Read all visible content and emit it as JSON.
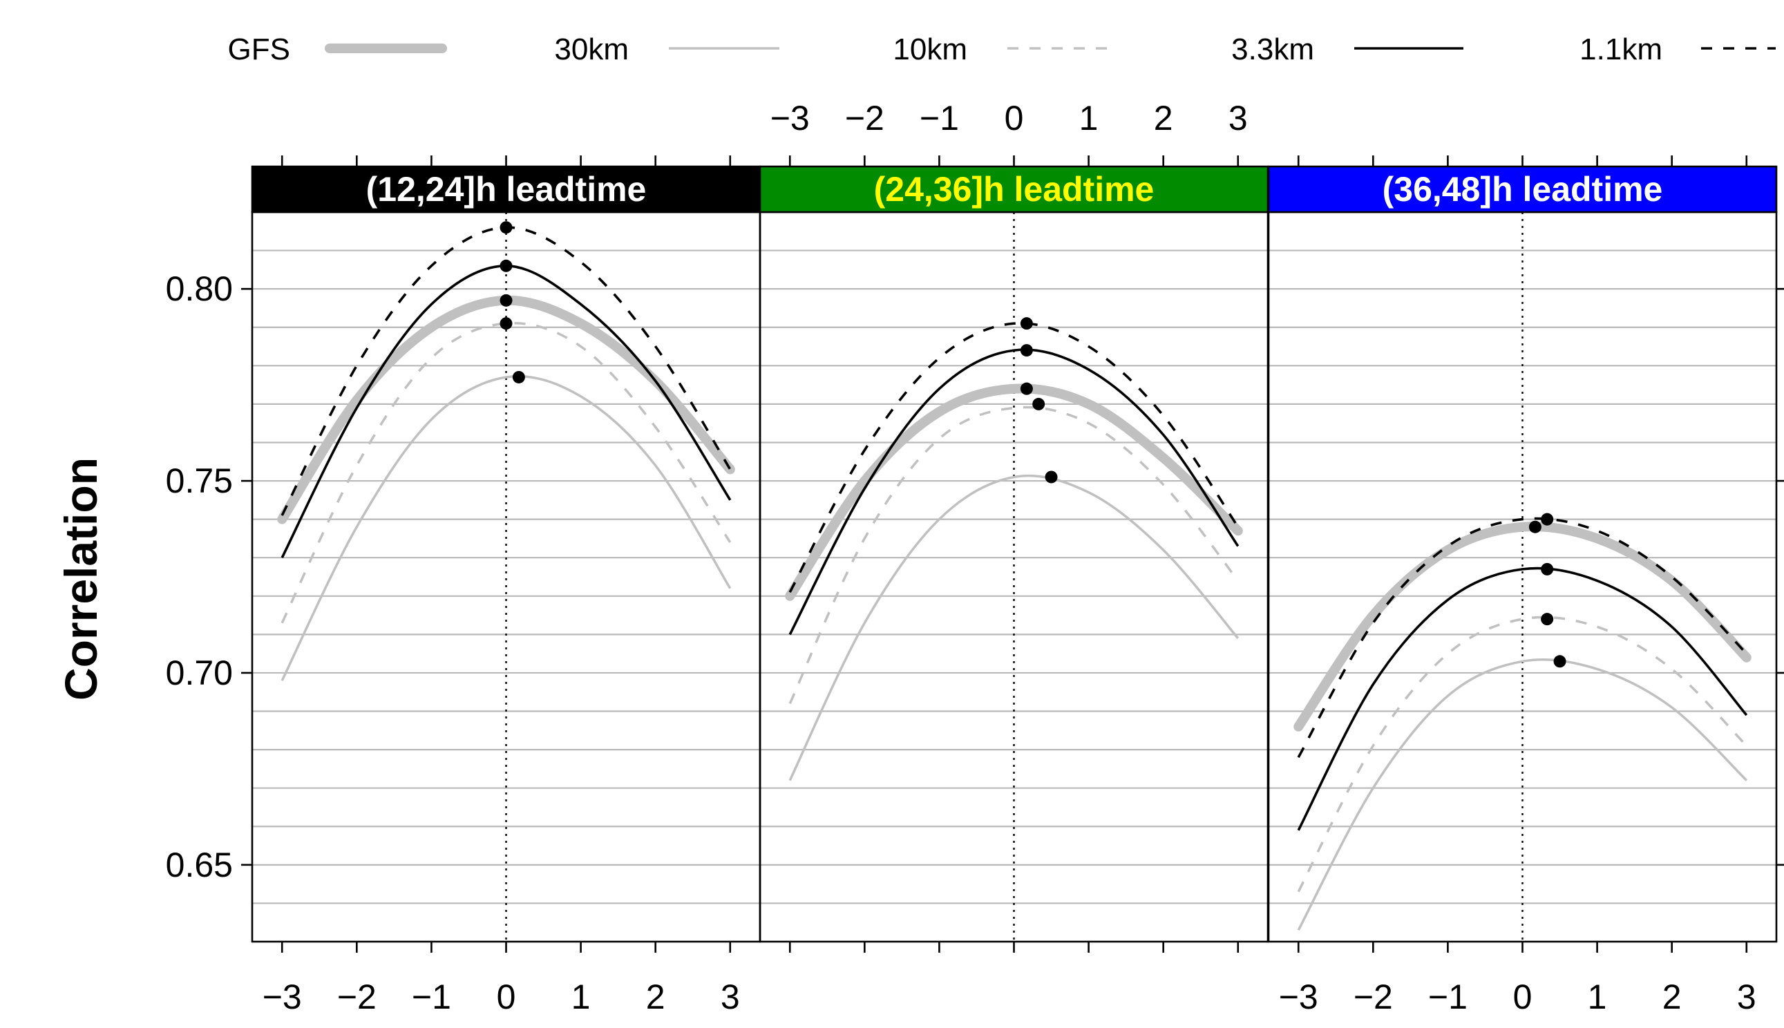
{
  "chart_data": {
    "type": "line",
    "title": "",
    "xlabel": "",
    "ylabel": "Correlation",
    "xlim": [
      -3.4,
      3.4
    ],
    "ylim": [
      0.63,
      0.82
    ],
    "x_ticks": [
      -3,
      -2,
      -1,
      0,
      1,
      2,
      3
    ],
    "x_tick_labels": [
      "−3",
      "−2",
      "−1",
      "0",
      "1",
      "2",
      "3"
    ],
    "y_ticks": [
      0.65,
      0.7,
      0.75,
      0.8
    ],
    "y_tick_labels": [
      "0.65",
      "0.70",
      "0.75",
      "0.80"
    ],
    "grid": true,
    "legend_position": "top",
    "legend": [
      {
        "name": "GFS",
        "color": "#c0c0c0",
        "style": "thick"
      },
      {
        "name": "30km",
        "color": "#c0c0c0",
        "style": "solid"
      },
      {
        "name": "10km",
        "color": "#c0c0c0",
        "style": "dashed"
      },
      {
        "name": "3.3km",
        "color": "#000000",
        "style": "solid"
      },
      {
        "name": "1.1km",
        "color": "#000000",
        "style": "dashed"
      }
    ],
    "panels": [
      {
        "label": "(12,24]h leadtime",
        "strip_color": "#000000",
        "text_color": "#ffffff",
        "series": [
          {
            "name": "GFS",
            "x": [
              -3,
              -2,
              -1,
              0,
              1,
              2,
              3
            ],
            "y": [
              0.74,
              0.771,
              0.79,
              0.797,
              0.791,
              0.776,
              0.753
            ],
            "peak": [
              0.0,
              0.797
            ]
          },
          {
            "name": "30km",
            "x": [
              -3,
              -2,
              -1,
              0,
              1,
              2,
              3
            ],
            "y": [
              0.698,
              0.738,
              0.766,
              0.777,
              0.772,
              0.754,
              0.722
            ],
            "peak": [
              0.17,
              0.777
            ]
          },
          {
            "name": "10km",
            "x": [
              -3,
              -2,
              -1,
              0,
              1,
              2,
              3
            ],
            "y": [
              0.713,
              0.754,
              0.782,
              0.791,
              0.785,
              0.764,
              0.734
            ],
            "peak": [
              0.0,
              0.791
            ]
          },
          {
            "name": "3.3km",
            "x": [
              -3,
              -2,
              -1,
              0,
              1,
              2,
              3
            ],
            "y": [
              0.73,
              0.769,
              0.796,
              0.806,
              0.796,
              0.776,
              0.745
            ],
            "peak": [
              0.0,
              0.806
            ]
          },
          {
            "name": "1.1km",
            "x": [
              -3,
              -2,
              -1,
              0,
              1,
              2,
              3
            ],
            "y": [
              0.741,
              0.78,
              0.806,
              0.816,
              0.807,
              0.785,
              0.753
            ],
            "peak": [
              0.0,
              0.816
            ]
          }
        ]
      },
      {
        "label": "(24,36]h leadtime",
        "strip_color": "#008b00",
        "text_color": "#ffff00",
        "series": [
          {
            "name": "GFS",
            "x": [
              -3,
              -2,
              -1,
              0,
              1,
              2,
              3
            ],
            "y": [
              0.72,
              0.75,
              0.768,
              0.774,
              0.77,
              0.756,
              0.737
            ],
            "peak": [
              0.17,
              0.774
            ]
          },
          {
            "name": "30km",
            "x": [
              -3,
              -2,
              -1,
              0,
              1,
              2,
              3
            ],
            "y": [
              0.672,
              0.713,
              0.74,
              0.751,
              0.747,
              0.732,
              0.709
            ],
            "peak": [
              0.5,
              0.751
            ]
          },
          {
            "name": "10km",
            "x": [
              -3,
              -2,
              -1,
              0,
              1,
              2,
              3
            ],
            "y": [
              0.692,
              0.735,
              0.761,
              0.769,
              0.765,
              0.749,
              0.724
            ],
            "peak": [
              0.33,
              0.77
            ]
          },
          {
            "name": "3.3km",
            "x": [
              -3,
              -2,
              -1,
              0,
              1,
              2,
              3
            ],
            "y": [
              0.71,
              0.748,
              0.774,
              0.784,
              0.779,
              0.762,
              0.733
            ],
            "peak": [
              0.17,
              0.784
            ]
          },
          {
            "name": "1.1km",
            "x": [
              -3,
              -2,
              -1,
              0,
              1,
              2,
              3
            ],
            "y": [
              0.721,
              0.758,
              0.782,
              0.791,
              0.785,
              0.767,
              0.738
            ],
            "peak": [
              0.17,
              0.791
            ]
          }
        ]
      },
      {
        "label": "(36,48]h leadtime",
        "strip_color": "#0000ff",
        "text_color": "#ffffff",
        "series": [
          {
            "name": "GFS",
            "x": [
              -3,
              -2,
              -1,
              0,
              1,
              2,
              3
            ],
            "y": [
              0.686,
              0.715,
              0.732,
              0.738,
              0.735,
              0.724,
              0.704
            ],
            "peak": [
              0.17,
              0.738
            ]
          },
          {
            "name": "30km",
            "x": [
              -3,
              -2,
              -1,
              0,
              1,
              2,
              3
            ],
            "y": [
              0.633,
              0.67,
              0.694,
              0.703,
              0.701,
              0.691,
              0.672
            ],
            "peak": [
              0.5,
              0.703
            ]
          },
          {
            "name": "10km",
            "x": [
              -3,
              -2,
              -1,
              0,
              1,
              2,
              3
            ],
            "y": [
              0.643,
              0.681,
              0.705,
              0.714,
              0.712,
              0.701,
              0.681
            ],
            "peak": [
              0.33,
              0.714
            ]
          },
          {
            "name": "3.3km",
            "x": [
              -3,
              -2,
              -1,
              0,
              1,
              2,
              3
            ],
            "y": [
              0.659,
              0.697,
              0.719,
              0.727,
              0.724,
              0.712,
              0.689
            ],
            "peak": [
              0.33,
              0.727
            ]
          },
          {
            "name": "1.1km",
            "x": [
              -3,
              -2,
              -1,
              0,
              1,
              2,
              3
            ],
            "y": [
              0.678,
              0.713,
              0.733,
              0.74,
              0.737,
              0.725,
              0.705
            ],
            "peak": [
              0.33,
              0.74
            ]
          }
        ]
      }
    ]
  }
}
